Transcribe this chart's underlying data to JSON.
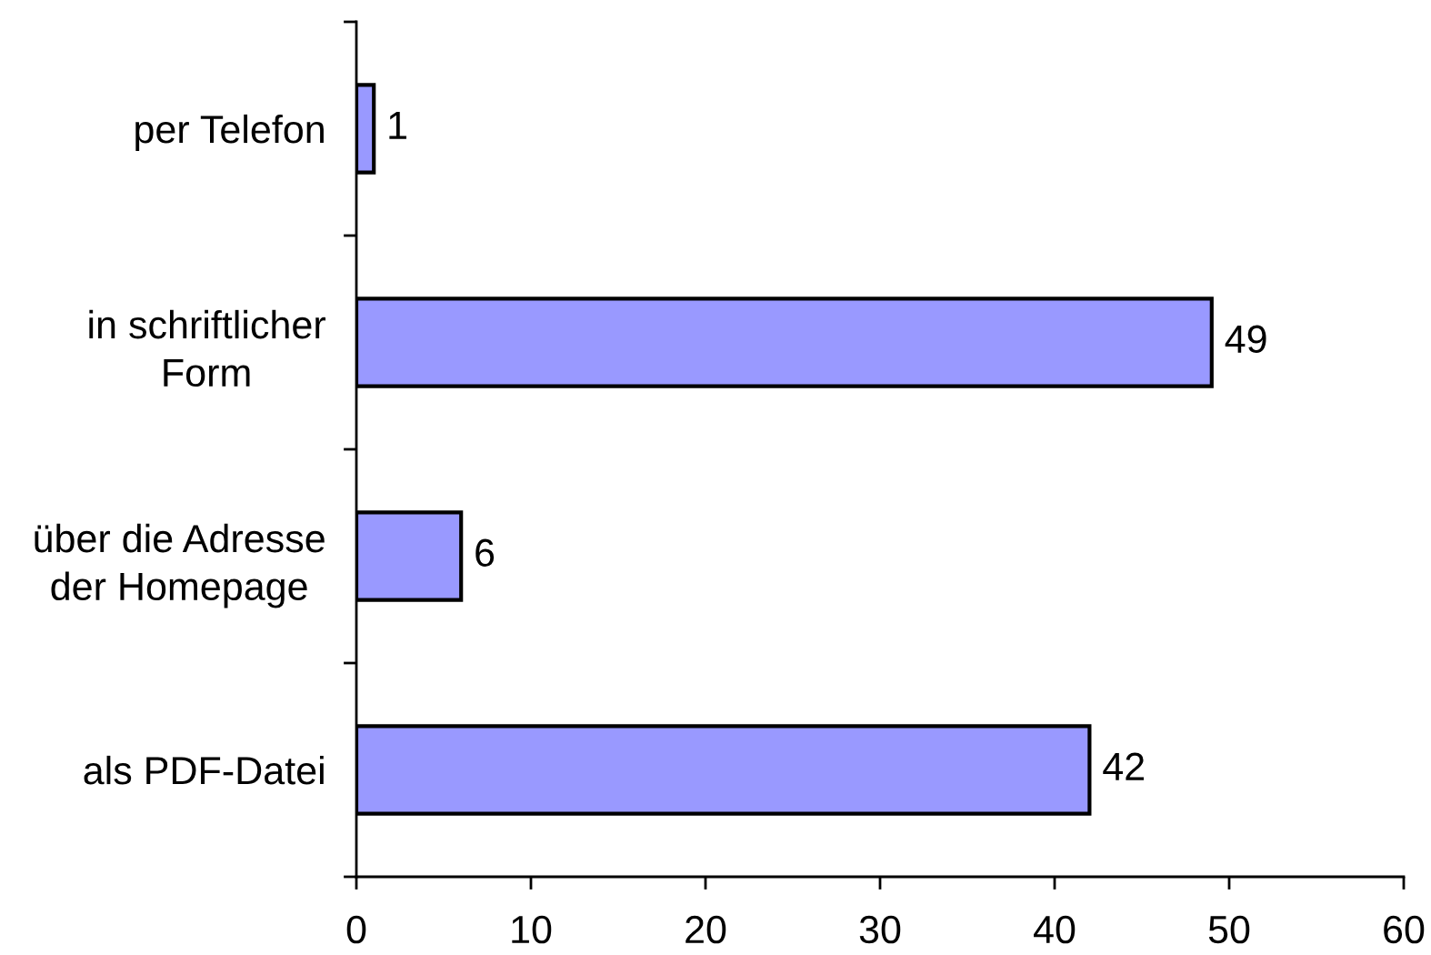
{
  "chart_data": {
    "type": "bar",
    "orientation": "horizontal",
    "categories": [
      "per Telefon",
      "in schriftlicher\nForm",
      "über die Adresse\nder Homepage",
      "als PDF-Datei"
    ],
    "values": [
      1,
      49,
      6,
      42
    ],
    "color": "#9999ff",
    "xlim": [
      0,
      60
    ],
    "xticks": [
      0,
      10,
      20,
      30,
      40,
      50,
      60
    ],
    "data_labels": true
  }
}
